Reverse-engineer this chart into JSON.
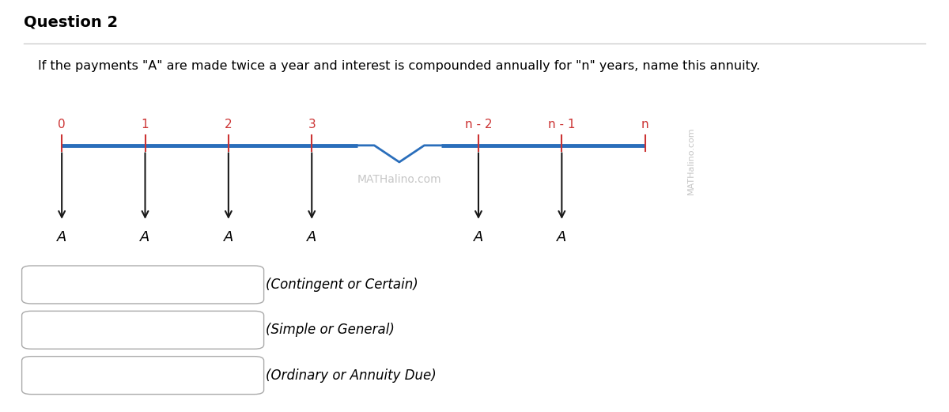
{
  "title": "Question 2",
  "question_text": "If the payments \"A\" are made twice a year and interest is compounded annually for \"n\" years, name this annuity.",
  "tick_labels": [
    "0",
    "1",
    "2",
    "3",
    "n - 2",
    "n - 1",
    "n"
  ],
  "tick_positions": [
    0,
    1,
    2,
    3,
    5,
    6,
    7
  ],
  "payment_positions": [
    0,
    1,
    2,
    3,
    5,
    6
  ],
  "payment_label": "A",
  "timeline_color": "#2a6ebb",
  "tick_color": "#cc3333",
  "arrow_color": "#1a1a1a",
  "watermark_center_text": "MATHalino.com",
  "watermark_side_text": "MATHalino.com",
  "choices": [
    "(Contingent or Certain)",
    "(Simple or General)",
    "(Ordinary or Annuity Due)"
  ],
  "background_color": "#ffffff",
  "title_fontsize": 14,
  "question_fontsize": 11.5,
  "tick_label_fontsize": 11,
  "payment_label_fontsize": 13,
  "choice_fontsize": 12,
  "watermark_fontsize": 10,
  "side_watermark_fontsize": 8
}
